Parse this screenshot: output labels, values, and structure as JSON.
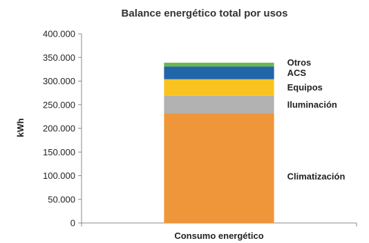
{
  "chart_data": {
    "type": "bar",
    "stacked": true,
    "title": "Balance energético total por usos",
    "xlabel": "",
    "ylabel": "kWh",
    "categories": [
      "Consumo energético"
    ],
    "ylim": [
      0,
      400000
    ],
    "yticks": [
      0,
      50000,
      100000,
      150000,
      200000,
      250000,
      300000,
      350000,
      400000
    ],
    "ytick_labels": [
      "0",
      "50.000",
      "100.000",
      "150.000",
      "200.000",
      "250.000",
      "300.000",
      "350.000",
      "400.000"
    ],
    "grid": false,
    "series": [
      {
        "name": "Climatización",
        "values": [
          232000
        ],
        "color": "#F0963A"
      },
      {
        "name": "Iluminación",
        "values": [
          37000
        ],
        "color": "#B2B2B2"
      },
      {
        "name": "Equipos",
        "values": [
          35000
        ],
        "color": "#F9C21F"
      },
      {
        "name": "ACS",
        "values": [
          27000
        ],
        "color": "#2266AA"
      },
      {
        "name": "Otros",
        "values": [
          8000
        ],
        "color": "#6DB84A"
      }
    ]
  }
}
